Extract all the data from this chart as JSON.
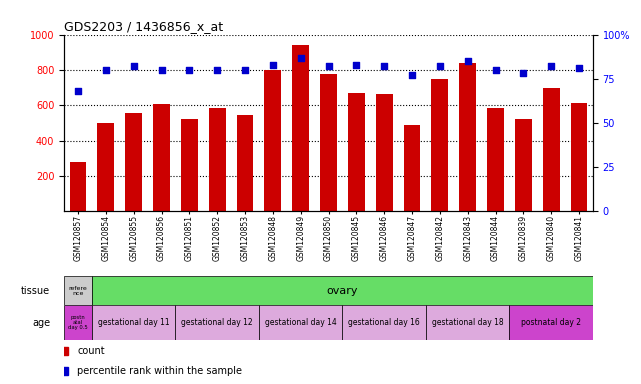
{
  "title": "GDS2203 / 1436856_x_at",
  "samples": [
    "GSM120857",
    "GSM120854",
    "GSM120855",
    "GSM120856",
    "GSM120851",
    "GSM120852",
    "GSM120853",
    "GSM120848",
    "GSM120849",
    "GSM120850",
    "GSM120845",
    "GSM120846",
    "GSM120847",
    "GSM120842",
    "GSM120843",
    "GSM120844",
    "GSM120839",
    "GSM120840",
    "GSM120841"
  ],
  "counts": [
    280,
    500,
    555,
    605,
    520,
    585,
    545,
    800,
    940,
    775,
    670,
    665,
    490,
    750,
    840,
    585,
    520,
    700,
    610
  ],
  "percentiles": [
    68,
    80,
    82,
    80,
    80,
    80,
    80,
    83,
    87,
    82,
    83,
    82,
    77,
    82,
    85,
    80,
    78,
    82,
    81
  ],
  "ylim_left": [
    0,
    1000
  ],
  "ylim_right": [
    0,
    100
  ],
  "yticks_left": [
    200,
    400,
    600,
    800,
    1000
  ],
  "yticks_right": [
    0,
    25,
    50,
    75,
    100
  ],
  "bar_color": "#cc0000",
  "dot_color": "#0000cc",
  "bg_color": "#ffffff",
  "tissue_first_label": "refere\nnce",
  "tissue_first_color": "#cccccc",
  "tissue_second_label": "ovary",
  "tissue_second_color": "#66dd66",
  "age_first_label": "postn\natal\nday 0.5",
  "age_first_color": "#cc44cc",
  "age_groups": [
    {
      "label": "gestational day 11",
      "color": "#ddaadd",
      "count": 3
    },
    {
      "label": "gestational day 12",
      "color": "#ddaadd",
      "count": 3
    },
    {
      "label": "gestational day 14",
      "color": "#ddaadd",
      "count": 3
    },
    {
      "label": "gestational day 16",
      "color": "#ddaadd",
      "count": 3
    },
    {
      "label": "gestational day 18",
      "color": "#ddaadd",
      "count": 3
    },
    {
      "label": "postnatal day 2",
      "color": "#cc44cc",
      "count": 3
    }
  ]
}
